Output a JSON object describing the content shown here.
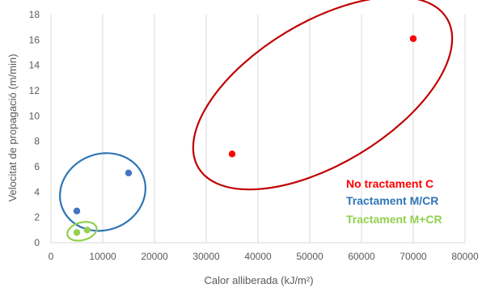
{
  "chart_data": {
    "type": "scatter",
    "title": "",
    "xlabel": "Calor alliberada (kJ/m²)",
    "ylabel": "Velocitat de propagació (m/min)",
    "xlim": [
      0,
      80000
    ],
    "ylim": [
      0,
      18
    ],
    "x_ticks": [
      0,
      10000,
      20000,
      30000,
      40000,
      50000,
      60000,
      70000,
      80000
    ],
    "y_ticks": [
      0,
      2,
      4,
      6,
      8,
      10,
      12,
      14,
      16,
      18
    ],
    "grid": {
      "horizontal": false,
      "vertical": true
    },
    "legend_position": "right",
    "series": [
      {
        "name": "No tractament C",
        "color": "#ff0000",
        "ellipse_color": "#c00000",
        "points": [
          {
            "x": 35000,
            "y": 7.0
          },
          {
            "x": 70000,
            "y": 16.1
          }
        ],
        "ellipse": {
          "cx": 52500,
          "cy": 11.8,
          "rx": 28000,
          "ry": 5.6,
          "angle": -31
        }
      },
      {
        "name": "Tractament M/CR",
        "color": "#4472c4",
        "ellipse_color": "#2e75b6",
        "points": [
          {
            "x": 5000,
            "y": 2.5
          },
          {
            "x": 15000,
            "y": 5.5
          }
        ],
        "ellipse": {
          "cx": 10000,
          "cy": 4.0,
          "rx": 8400,
          "ry": 3.0,
          "angle": -22
        }
      },
      {
        "name": "Tractament M+CR",
        "color": "#92d050",
        "ellipse_color": "#92d050",
        "points": [
          {
            "x": 5000,
            "y": 0.8
          },
          {
            "x": 7000,
            "y": 1.0
          }
        ],
        "ellipse": {
          "cx": 6000,
          "cy": 0.9,
          "rx": 2900,
          "ry": 0.7,
          "angle": -15
        }
      }
    ]
  }
}
